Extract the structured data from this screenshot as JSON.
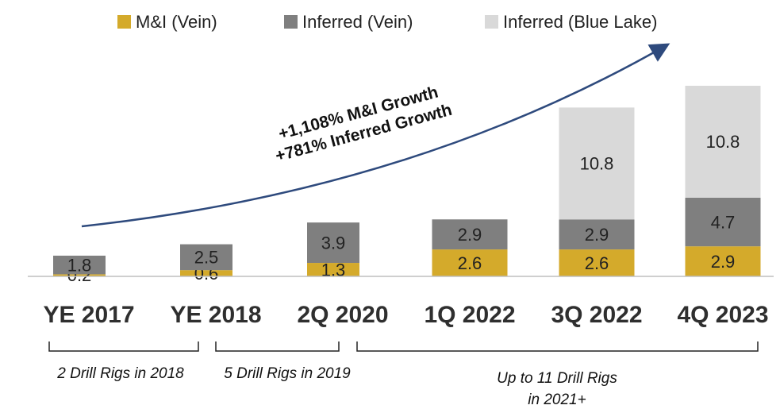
{
  "chart_data": {
    "type": "stacked_bar",
    "categories": [
      "YE 2017",
      "YE 2018",
      "2Q 2020",
      "1Q 2022",
      "3Q 2022",
      "4Q 2023"
    ],
    "series": [
      {
        "name": "M&I (Vein)",
        "color": "#d4aa2b",
        "values": [
          0.2,
          0.6,
          1.3,
          2.6,
          2.6,
          2.9
        ]
      },
      {
        "name": "Inferred (Vein)",
        "color": "#7f7f7f",
        "values": [
          1.8,
          2.5,
          3.9,
          2.9,
          2.9,
          4.7
        ]
      },
      {
        "name": "Inferred (Blue Lake)",
        "color": "#d9d9d9",
        "values": [
          null,
          null,
          null,
          null,
          10.8,
          10.8
        ]
      }
    ],
    "annotations": [
      "+1,108% M&I Growth",
      "+781% Inferred Growth"
    ],
    "notes": [
      [
        "2 Drill Rigs in 2018"
      ],
      [
        "5 Drill Rigs in 2019"
      ],
      [
        "Up to 11 Drill Rigs",
        "in 2021+"
      ]
    ]
  }
}
